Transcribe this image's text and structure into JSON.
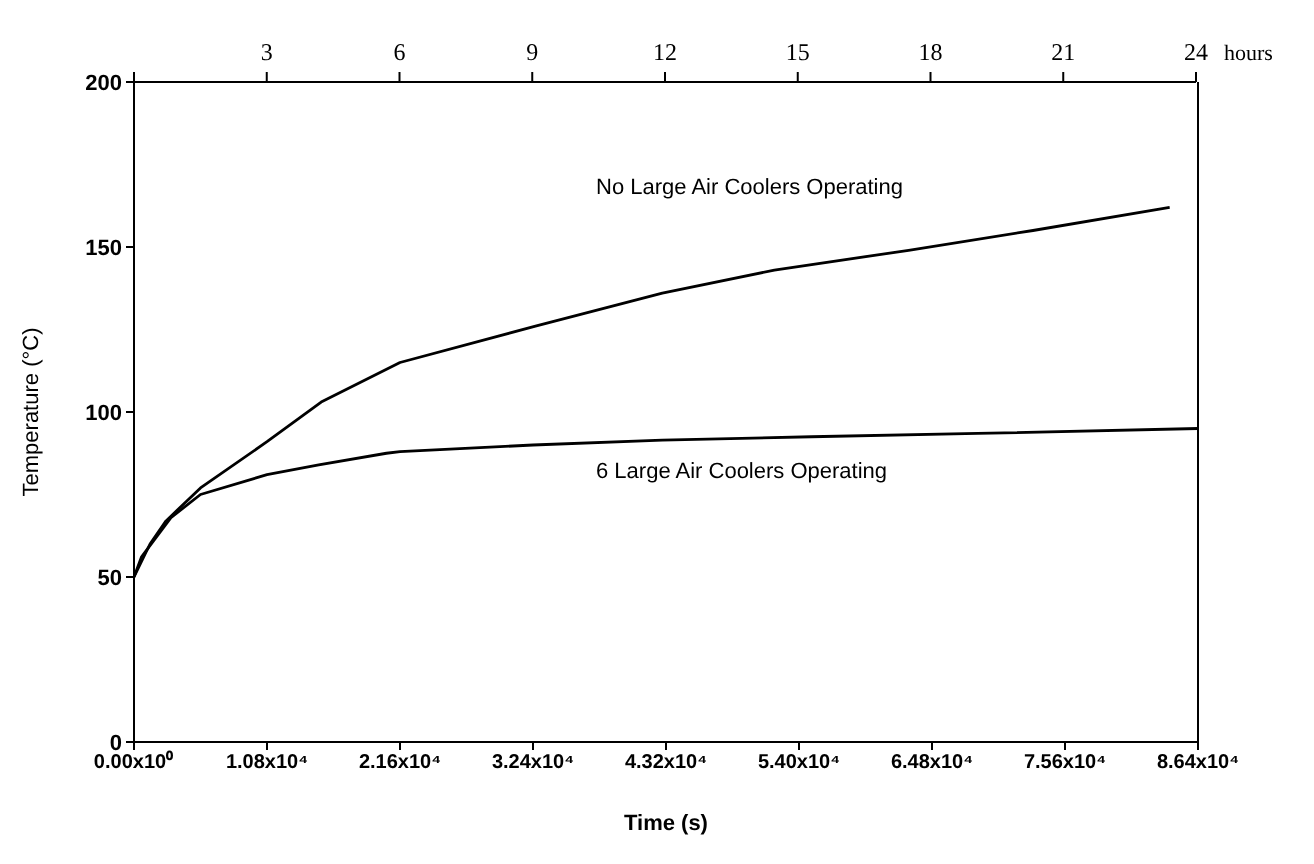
{
  "chart_data": {
    "type": "line",
    "xlabel": "Time (s)",
    "ylabel": "Temperature (°C)",
    "x2label": "hours",
    "xlim": [
      0,
      86400
    ],
    "xticks": [
      {
        "value": 0,
        "label": "0.00x10⁰"
      },
      {
        "value": 10800,
        "label": "1.08x10⁴"
      },
      {
        "value": 21600,
        "label": "2.16x10⁴"
      },
      {
        "value": 32400,
        "label": "3.24x10⁴"
      },
      {
        "value": 43200,
        "label": "4.32x10⁴"
      },
      {
        "value": 54000,
        "label": "5.40x10⁴"
      },
      {
        "value": 64800,
        "label": "6.48x10⁴"
      },
      {
        "value": 75600,
        "label": "7.56x10⁴"
      },
      {
        "value": 86400,
        "label": "8.64x10⁴"
      }
    ],
    "x2lim": [
      0,
      24
    ],
    "x2ticks": [
      {
        "value": 0,
        "label": null
      },
      3,
      6,
      9,
      12,
      15,
      18,
      21,
      24
    ],
    "ylim": [
      0,
      200
    ],
    "yticks": [
      0,
      50,
      100,
      150,
      200
    ],
    "marker": "none",
    "series": [
      {
        "color": "#000000",
        "x": [
          0,
          1300,
          2600,
          5400,
          10800,
          15200,
          21600,
          32600,
          42900,
          52000,
          62900,
          73000,
          84100
        ],
        "values": [
          50,
          60,
          67,
          77,
          91,
          103,
          115,
          126,
          136,
          143,
          149,
          155,
          162
        ]
      },
      {
        "color": "#000000",
        "x": [
          0,
          600,
          1600,
          3000,
          5400,
          10800,
          15000,
          20500,
          21600,
          32400,
          42900,
          55000,
          68500,
          86400
        ],
        "values": [
          50,
          56,
          61,
          68,
          75,
          81,
          84,
          87.5,
          88,
          90,
          91.5,
          92.5,
          93.5,
          95
        ]
      }
    ],
    "annotations": [
      "No Large Air Coolers Operating",
      "6 Large Air Coolers Operating"
    ]
  }
}
